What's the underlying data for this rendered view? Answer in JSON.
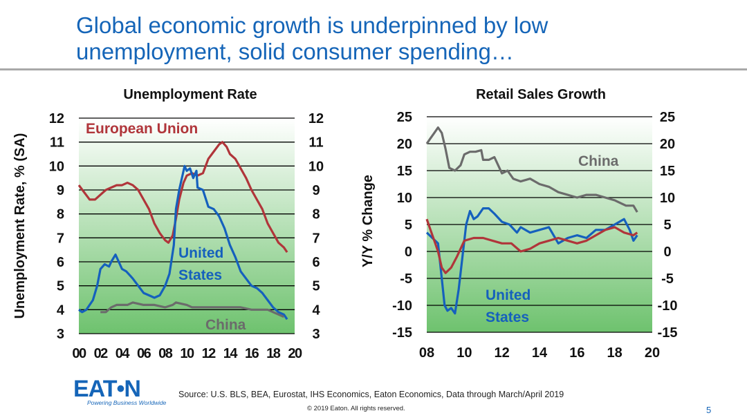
{
  "slide": {
    "title_line1": "Global economic growth is underpinned by low",
    "title_line2": "unemployment, solid consumer spending…",
    "source": "Source: U.S. BLS, BEA, Eurostat, IHS Economics, Eaton Economics, Data through March/April 2019",
    "copyright": "© 2019 Eaton. All rights reserved.",
    "page_number": "5",
    "logo_text": "EAT•N",
    "logo_tagline": "Powering Business Worldwide"
  },
  "colors": {
    "title": "#1565b8",
    "eu": "#b0353a",
    "us": "#1560bd",
    "china": "#6b6b6b",
    "bg_top": "#ffffff",
    "bg_bottom": "#6ec26e"
  },
  "chart_data": [
    {
      "type": "line",
      "title": "Unemployment Rate",
      "ylabel": "Unemployment Rate, % (SA)",
      "xlabel": "",
      "x_ticks": [
        "00",
        "02",
        "04",
        "06",
        "08",
        "10",
        "12",
        "14",
        "16",
        "18",
        "20"
      ],
      "xlim": [
        2000,
        2020
      ],
      "ylim": [
        3,
        12
      ],
      "y_ticks": [
        3,
        4,
        5,
        6,
        7,
        8,
        9,
        10,
        11,
        12
      ],
      "grid": true,
      "annotations": [
        {
          "text": "European Union",
          "series": "eu"
        },
        {
          "text": "United",
          "series": "us"
        },
        {
          "text": "States",
          "series": "us"
        },
        {
          "text": "China",
          "series": "china"
        }
      ],
      "series": [
        {
          "key": "eu",
          "points": [
            [
              2000,
              9.2
            ],
            [
              2000.5,
              8.9
            ],
            [
              2001,
              8.6
            ],
            [
              2001.5,
              8.6
            ],
            [
              2002,
              8.8
            ],
            [
              2002.5,
              9.0
            ],
            [
              2003,
              9.1
            ],
            [
              2003.5,
              9.2
            ],
            [
              2004,
              9.2
            ],
            [
              2004.5,
              9.3
            ],
            [
              2005,
              9.2
            ],
            [
              2005.5,
              9.0
            ],
            [
              2006,
              8.6
            ],
            [
              2006.5,
              8.2
            ],
            [
              2007,
              7.6
            ],
            [
              2007.5,
              7.2
            ],
            [
              2008,
              6.9
            ],
            [
              2008.3,
              6.8
            ],
            [
              2008.7,
              7.1
            ],
            [
              2009,
              7.8
            ],
            [
              2009.3,
              8.6
            ],
            [
              2009.7,
              9.3
            ],
            [
              2010,
              9.6
            ],
            [
              2010.5,
              9.7
            ],
            [
              2011,
              9.6
            ],
            [
              2011.5,
              9.7
            ],
            [
              2012,
              10.3
            ],
            [
              2012.5,
              10.6
            ],
            [
              2013,
              10.9
            ],
            [
              2013.3,
              11.0
            ],
            [
              2013.7,
              10.8
            ],
            [
              2014,
              10.5
            ],
            [
              2014.5,
              10.3
            ],
            [
              2015,
              9.9
            ],
            [
              2015.5,
              9.5
            ],
            [
              2016,
              9.0
            ],
            [
              2016.5,
              8.6
            ],
            [
              2017,
              8.2
            ],
            [
              2017.5,
              7.6
            ],
            [
              2018,
              7.2
            ],
            [
              2018.5,
              6.8
            ],
            [
              2019,
              6.6
            ],
            [
              2019.3,
              6.4
            ]
          ]
        },
        {
          "key": "us",
          "points": [
            [
              2000,
              4.0
            ],
            [
              2000.3,
              3.9
            ],
            [
              2000.7,
              4.0
            ],
            [
              2001,
              4.2
            ],
            [
              2001.3,
              4.4
            ],
            [
              2001.7,
              5.0
            ],
            [
              2002,
              5.7
            ],
            [
              2002.4,
              5.9
            ],
            [
              2002.8,
              5.8
            ],
            [
              2003,
              6.0
            ],
            [
              2003.4,
              6.3
            ],
            [
              2003.8,
              5.9
            ],
            [
              2004,
              5.7
            ],
            [
              2004.4,
              5.6
            ],
            [
              2004.8,
              5.4
            ],
            [
              2005,
              5.3
            ],
            [
              2005.5,
              5.0
            ],
            [
              2006,
              4.7
            ],
            [
              2006.5,
              4.6
            ],
            [
              2007,
              4.5
            ],
            [
              2007.5,
              4.6
            ],
            [
              2008,
              5.0
            ],
            [
              2008.4,
              5.5
            ],
            [
              2008.8,
              6.7
            ],
            [
              2009,
              8.2
            ],
            [
              2009.3,
              9.0
            ],
            [
              2009.6,
              9.6
            ],
            [
              2009.8,
              10.0
            ],
            [
              2010,
              9.8
            ],
            [
              2010.3,
              9.9
            ],
            [
              2010.6,
              9.5
            ],
            [
              2010.9,
              9.8
            ],
            [
              2011,
              9.1
            ],
            [
              2011.5,
              9.0
            ],
            [
              2012,
              8.3
            ],
            [
              2012.5,
              8.2
            ],
            [
              2013,
              7.9
            ],
            [
              2013.5,
              7.4
            ],
            [
              2014,
              6.7
            ],
            [
              2014.5,
              6.2
            ],
            [
              2015,
              5.6
            ],
            [
              2015.5,
              5.3
            ],
            [
              2016,
              5.0
            ],
            [
              2016.5,
              4.9
            ],
            [
              2017,
              4.7
            ],
            [
              2017.5,
              4.4
            ],
            [
              2018,
              4.1
            ],
            [
              2018.5,
              3.9
            ],
            [
              2019,
              3.8
            ],
            [
              2019.3,
              3.6
            ]
          ]
        },
        {
          "key": "china",
          "points": [
            [
              2002,
              3.9
            ],
            [
              2002.5,
              3.9
            ],
            [
              2003,
              4.1
            ],
            [
              2003.5,
              4.2
            ],
            [
              2004,
              4.2
            ],
            [
              2004.5,
              4.2
            ],
            [
              2005,
              4.3
            ],
            [
              2006,
              4.2
            ],
            [
              2007,
              4.2
            ],
            [
              2008,
              4.1
            ],
            [
              2008.7,
              4.2
            ],
            [
              2009,
              4.3
            ],
            [
              2010,
              4.2
            ],
            [
              2010.5,
              4.1
            ],
            [
              2011,
              4.1
            ],
            [
              2012,
              4.1
            ],
            [
              2013,
              4.1
            ],
            [
              2014,
              4.1
            ],
            [
              2015,
              4.1
            ],
            [
              2016,
              4.0
            ],
            [
              2017,
              4.0
            ],
            [
              2017.5,
              4.0
            ],
            [
              2018,
              3.9
            ],
            [
              2019,
              3.7
            ]
          ]
        }
      ]
    },
    {
      "type": "line",
      "title": "Retail Sales Growth",
      "ylabel": "Y/Y % Change",
      "xlabel": "",
      "x_ticks": [
        "08",
        "10",
        "12",
        "14",
        "16",
        "18",
        "20"
      ],
      "xlim": [
        2008,
        2020
      ],
      "ylim": [
        -15,
        25
      ],
      "y_ticks": [
        -15,
        -10,
        -5,
        0,
        5,
        10,
        15,
        20,
        25
      ],
      "grid": true,
      "annotations": [
        {
          "text": "China",
          "series": "china"
        },
        {
          "text": "United",
          "series": "us"
        },
        {
          "text": "States",
          "series": "us"
        }
      ],
      "series": [
        {
          "key": "china",
          "points": [
            [
              2008,
              20
            ],
            [
              2008.2,
              21
            ],
            [
              2008.4,
              22
            ],
            [
              2008.6,
              23
            ],
            [
              2008.8,
              22
            ],
            [
              2009,
              19
            ],
            [
              2009.2,
              15.5
            ],
            [
              2009.5,
              15
            ],
            [
              2009.8,
              16
            ],
            [
              2010,
              18
            ],
            [
              2010.3,
              18.5
            ],
            [
              2010.6,
              18.5
            ],
            [
              2010.9,
              18.8
            ],
            [
              2011,
              17
            ],
            [
              2011.3,
              17
            ],
            [
              2011.6,
              17.5
            ],
            [
              2012,
              14.5
            ],
            [
              2012.3,
              15
            ],
            [
              2012.6,
              13.5
            ],
            [
              2013,
              13
            ],
            [
              2013.5,
              13.5
            ],
            [
              2014,
              12.5
            ],
            [
              2014.5,
              12
            ],
            [
              2015,
              11
            ],
            [
              2015.5,
              10.5
            ],
            [
              2016,
              10
            ],
            [
              2016.5,
              10.5
            ],
            [
              2017,
              10.5
            ],
            [
              2017.5,
              10
            ],
            [
              2018,
              9.5
            ],
            [
              2018.3,
              9
            ],
            [
              2018.6,
              8.5
            ],
            [
              2019,
              8.5
            ],
            [
              2019.2,
              7.3
            ]
          ]
        },
        {
          "key": "us",
          "points": [
            [
              2008,
              3.5
            ],
            [
              2008.3,
              2.5
            ],
            [
              2008.6,
              1.5
            ],
            [
              2008.8,
              -5
            ],
            [
              2008.95,
              -10
            ],
            [
              2009.1,
              -11
            ],
            [
              2009.3,
              -10.5
            ],
            [
              2009.5,
              -11.5
            ],
            [
              2009.7,
              -7
            ],
            [
              2009.9,
              -1
            ],
            [
              2010.1,
              5
            ],
            [
              2010.3,
              7.5
            ],
            [
              2010.5,
              6
            ],
            [
              2010.7,
              6.5
            ],
            [
              2011,
              8
            ],
            [
              2011.3,
              8
            ],
            [
              2011.6,
              7
            ],
            [
              2012,
              5.5
            ],
            [
              2012.4,
              5
            ],
            [
              2012.8,
              3.5
            ],
            [
              2013,
              4.5
            ],
            [
              2013.5,
              3.5
            ],
            [
              2014,
              4
            ],
            [
              2014.5,
              4.5
            ],
            [
              2015,
              1.5
            ],
            [
              2015.5,
              2.5
            ],
            [
              2016,
              3
            ],
            [
              2016.5,
              2.5
            ],
            [
              2017,
              4
            ],
            [
              2017.5,
              4
            ],
            [
              2018,
              5
            ],
            [
              2018.5,
              6
            ],
            [
              2018.8,
              4
            ],
            [
              2019,
              2
            ],
            [
              2019.2,
              3
            ]
          ]
        },
        {
          "key": "eu",
          "points": [
            [
              2008,
              6
            ],
            [
              2008.2,
              4
            ],
            [
              2008.4,
              2
            ],
            [
              2008.6,
              0
            ],
            [
              2008.8,
              -3
            ],
            [
              2009,
              -4
            ],
            [
              2009.3,
              -3
            ],
            [
              2009.6,
              -1
            ],
            [
              2010,
              2
            ],
            [
              2010.5,
              2.5
            ],
            [
              2011,
              2.5
            ],
            [
              2011.5,
              2
            ],
            [
              2012,
              1.5
            ],
            [
              2012.5,
              1.5
            ],
            [
              2013,
              0
            ],
            [
              2013.5,
              0.5
            ],
            [
              2014,
              1.5
            ],
            [
              2014.5,
              2
            ],
            [
              2015,
              2.5
            ],
            [
              2015.5,
              2
            ],
            [
              2016,
              1.5
            ],
            [
              2016.5,
              2
            ],
            [
              2017,
              3
            ],
            [
              2017.5,
              4
            ],
            [
              2018,
              4.5
            ],
            [
              2018.5,
              3.5
            ],
            [
              2019,
              3
            ],
            [
              2019.2,
              3.5
            ]
          ]
        }
      ]
    }
  ]
}
